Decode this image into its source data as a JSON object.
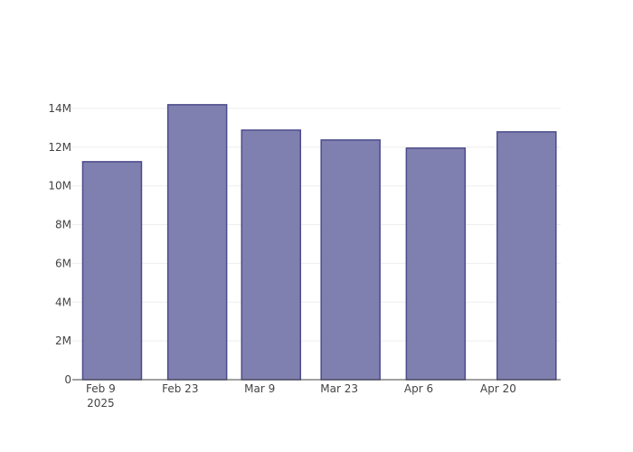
{
  "chart_data": {
    "type": "bar",
    "x": [
      "2025-02-11",
      "2025-02-26",
      "2025-03-11",
      "2025-03-25",
      "2025-04-09",
      "2025-04-25"
    ],
    "values": [
      11250000,
      14190000,
      12880000,
      12370000,
      11950000,
      12790000
    ],
    "color": "#8080b0",
    "line_color": "#4b4b8c",
    "xlim": [
      "2025-02-04",
      "2025-05-01"
    ],
    "xticks": [
      {
        "value": "2025-02-09",
        "label": [
          "Feb 9",
          "2025"
        ]
      },
      {
        "value": "2025-02-23",
        "label": [
          "Feb 23"
        ]
      },
      {
        "value": "2025-03-09",
        "label": [
          "Mar 9"
        ]
      },
      {
        "value": "2025-03-23",
        "label": [
          "Mar 23"
        ]
      },
      {
        "value": "2025-04-06",
        "label": [
          "Apr 6"
        ]
      },
      {
        "value": "2025-04-20",
        "label": [
          "Apr 20"
        ]
      }
    ],
    "ylim": [
      0,
      14930000
    ],
    "yticks": [
      0,
      {
        "value": 2000000,
        "label": "2M"
      },
      {
        "value": 4000000,
        "label": "4M"
      },
      {
        "value": 6000000,
        "label": "6M"
      },
      {
        "value": 8000000,
        "label": "8M"
      },
      {
        "value": 10000000,
        "label": "10M"
      },
      {
        "value": 12000000,
        "label": "12M"
      },
      {
        "value": 14000000,
        "label": "14M"
      }
    ],
    "grid": true
  }
}
